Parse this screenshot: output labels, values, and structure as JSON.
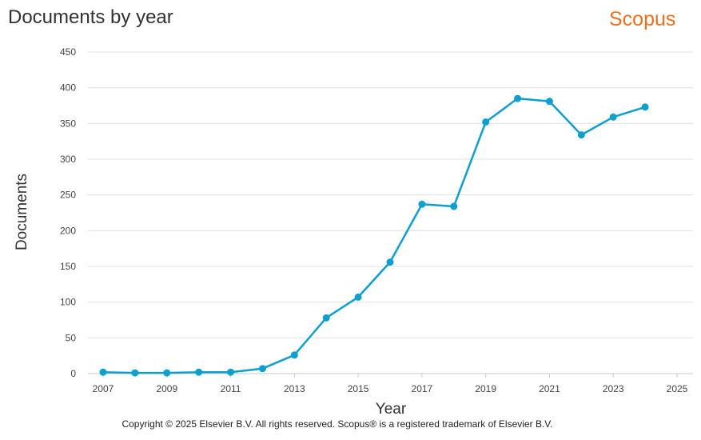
{
  "header": {
    "title": "Documents by year",
    "brand": "Scopus"
  },
  "footer": {
    "copyright": "Copyright © 2025 Elsevier B.V. All rights reserved. Scopus® is a registered trademark of Elsevier B.V."
  },
  "colors": {
    "series": "#0d9fce",
    "brand": "#e9711c",
    "grid": "#e0e0e0"
  },
  "chart_data": {
    "type": "line",
    "title": "Documents by year",
    "xlabel": "Year",
    "ylabel": "Documents",
    "xlim": [
      2007,
      2025
    ],
    "ylim": [
      0,
      450
    ],
    "x_ticks": [
      2007,
      2009,
      2011,
      2013,
      2015,
      2017,
      2019,
      2021,
      2023,
      2025
    ],
    "y_ticks": [
      0,
      50,
      100,
      150,
      200,
      250,
      300,
      350,
      400,
      450
    ],
    "grid": "horizontal",
    "series": [
      {
        "x": [
          2007,
          2008,
          2009,
          2010,
          2011,
          2012,
          2013,
          2014,
          2015,
          2016,
          2017,
          2018,
          2019,
          2020,
          2021,
          2022,
          2023,
          2024
        ],
        "values": [
          2,
          1,
          1,
          2,
          2,
          7,
          26,
          78,
          107,
          156,
          237,
          234,
          352,
          385,
          381,
          334,
          359,
          373
        ]
      }
    ]
  }
}
